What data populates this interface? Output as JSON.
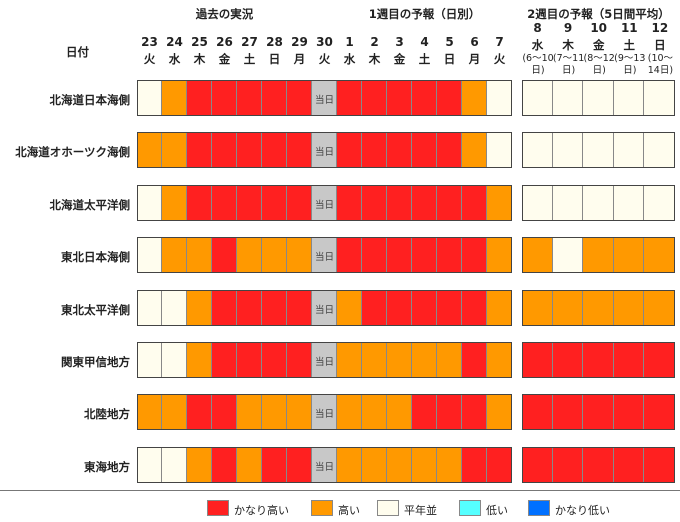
{
  "chart_data": {
    "type": "heatmap",
    "row_header": "日付",
    "sections": [
      {
        "title": "過去の実況"
      },
      {
        "title": "1週目の予報（日別）"
      },
      {
        "title": "2週目の予報（5日間平均）"
      }
    ],
    "daily_columns": [
      {
        "day": "23",
        "weekday": "火"
      },
      {
        "day": "24",
        "weekday": "水"
      },
      {
        "day": "25",
        "weekday": "木"
      },
      {
        "day": "26",
        "weekday": "金"
      },
      {
        "day": "27",
        "weekday": "土"
      },
      {
        "day": "28",
        "weekday": "日"
      },
      {
        "day": "29",
        "weekday": "月"
      },
      {
        "day": "30",
        "weekday": "火"
      },
      {
        "day": "1",
        "weekday": "水"
      },
      {
        "day": "2",
        "weekday": "木"
      },
      {
        "day": "3",
        "weekday": "金"
      },
      {
        "day": "4",
        "weekday": "土"
      },
      {
        "day": "5",
        "weekday": "日"
      },
      {
        "day": "6",
        "weekday": "月"
      },
      {
        "day": "7",
        "weekday": "火"
      }
    ],
    "weekly_columns": [
      {
        "day": "8",
        "weekday": "水",
        "range": "(6～10日)"
      },
      {
        "day": "9",
        "weekday": "木",
        "range": "(7～11日)"
      },
      {
        "day": "10",
        "weekday": "金",
        "range": "(8～12日)"
      },
      {
        "day": "11",
        "weekday": "土",
        "range": "(9～13日)"
      },
      {
        "day": "12",
        "weekday": "日",
        "range": "(10～14日)"
      }
    ],
    "today_label": "当日",
    "today_index": 7,
    "levels": {
      "H": {
        "label": "かなり高い",
        "color": "#ff2020"
      },
      "h": {
        "label": "高い",
        "color": "#ff9900"
      },
      "n": {
        "label": "平年並",
        "color": "#fffdee"
      },
      "l": {
        "label": "低い",
        "color": "#55ffff"
      },
      "L": {
        "label": "かなり低い",
        "color": "#0070ff"
      },
      "T": {
        "label": "",
        "color": "#c8c8c8"
      }
    },
    "legend_order": [
      "H",
      "h",
      "n",
      "l",
      "L"
    ],
    "rows": [
      {
        "region": "北海道日本海側",
        "daily": [
          "n",
          "h",
          "H",
          "H",
          "H",
          "H",
          "H",
          "T",
          "H",
          "H",
          "H",
          "H",
          "H",
          "h",
          "n"
        ],
        "weekly": [
          "n",
          "n",
          "n",
          "n",
          "n"
        ]
      },
      {
        "region": "北海道オホーツク海側",
        "daily": [
          "h",
          "h",
          "H",
          "H",
          "H",
          "H",
          "H",
          "T",
          "H",
          "H",
          "H",
          "H",
          "H",
          "h",
          "n"
        ],
        "weekly": [
          "n",
          "n",
          "n",
          "n",
          "n"
        ]
      },
      {
        "region": "北海道太平洋側",
        "daily": [
          "n",
          "h",
          "H",
          "H",
          "H",
          "H",
          "H",
          "T",
          "H",
          "H",
          "H",
          "H",
          "H",
          "H",
          "h"
        ],
        "weekly": [
          "n",
          "n",
          "n",
          "n",
          "n"
        ]
      },
      {
        "region": "東北日本海側",
        "daily": [
          "n",
          "h",
          "h",
          "H",
          "h",
          "h",
          "h",
          "T",
          "H",
          "H",
          "H",
          "H",
          "H",
          "H",
          "h"
        ],
        "weekly": [
          "h",
          "n",
          "h",
          "h",
          "h"
        ]
      },
      {
        "region": "東北太平洋側",
        "daily": [
          "n",
          "n",
          "h",
          "H",
          "H",
          "H",
          "H",
          "T",
          "h",
          "H",
          "H",
          "H",
          "H",
          "H",
          "h"
        ],
        "weekly": [
          "h",
          "h",
          "h",
          "h",
          "h"
        ]
      },
      {
        "region": "関東甲信地方",
        "daily": [
          "n",
          "n",
          "h",
          "H",
          "H",
          "H",
          "H",
          "T",
          "h",
          "h",
          "h",
          "h",
          "h",
          "H",
          "h"
        ],
        "weekly": [
          "H",
          "H",
          "H",
          "H",
          "H"
        ]
      },
      {
        "region": "北陸地方",
        "daily": [
          "h",
          "h",
          "H",
          "H",
          "h",
          "h",
          "h",
          "T",
          "h",
          "h",
          "h",
          "H",
          "H",
          "H",
          "h"
        ],
        "weekly": [
          "H",
          "H",
          "H",
          "H",
          "H"
        ]
      },
      {
        "region": "東海地方",
        "daily": [
          "n",
          "n",
          "h",
          "H",
          "h",
          "H",
          "H",
          "T",
          "h",
          "h",
          "h",
          "h",
          "h",
          "H",
          "H"
        ],
        "weekly": [
          "H",
          "H",
          "H",
          "H",
          "H"
        ]
      }
    ]
  }
}
